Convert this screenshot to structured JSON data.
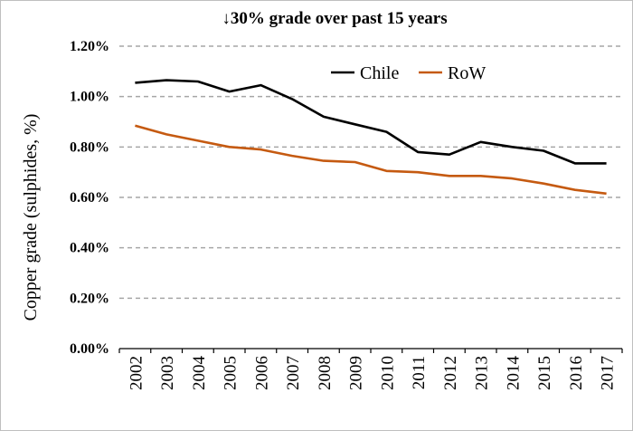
{
  "chart_data": {
    "type": "line",
    "title": "↓30% grade over past 15 years",
    "ylabel": "Copper grade (sulphides, %)",
    "xlabel": "",
    "categories": [
      "2002",
      "2003",
      "2004",
      "2005",
      "2006",
      "2007",
      "2008",
      "2009",
      "2010",
      "2011",
      "2012",
      "2013",
      "2014",
      "2015",
      "2016",
      "2017"
    ],
    "ylim": [
      0,
      1.2
    ],
    "yticks": [
      0,
      0.2,
      0.4,
      0.6,
      0.8,
      1.0,
      1.2
    ],
    "ytick_labels": [
      "0.00%",
      "0.20%",
      "0.40%",
      "0.60%",
      "0.80%",
      "1.00%",
      "1.20%"
    ],
    "grid": "horizontal-dashed",
    "legend_placement": "top-right",
    "series": [
      {
        "name": "Chile",
        "color": "#000000",
        "values": [
          1.055,
          1.065,
          1.06,
          1.02,
          1.045,
          0.99,
          0.92,
          0.89,
          0.86,
          0.78,
          0.77,
          0.82,
          0.8,
          0.785,
          0.735,
          0.735
        ]
      },
      {
        "name": "RoW",
        "color": "#c55a11",
        "values": [
          0.885,
          0.85,
          0.825,
          0.8,
          0.79,
          0.765,
          0.745,
          0.74,
          0.705,
          0.7,
          0.685,
          0.685,
          0.675,
          0.655,
          0.63,
          0.615
        ]
      }
    ]
  }
}
